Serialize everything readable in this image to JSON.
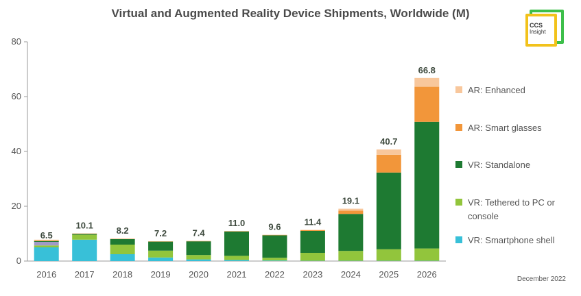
{
  "title": "Virtual and Augmented Reality Device Shipments, Worldwide (M)",
  "footnote": "December 2022",
  "logo": {
    "line1": "CCS",
    "line2": "Insight"
  },
  "chart_data": {
    "type": "bar",
    "stacked": true,
    "title": "Virtual and Augmented Reality Device Shipments, Worldwide (M)",
    "xlabel": "",
    "ylabel": "",
    "ylim": [
      0,
      80
    ],
    "yticks": [
      "0",
      "20",
      "40",
      "60",
      "80"
    ],
    "grid": false,
    "legend_position": "right",
    "categories": [
      "2016",
      "2017",
      "2018",
      "2019",
      "2020",
      "2021",
      "2022",
      "2023",
      "2024",
      "2025",
      "2026"
    ],
    "totals": [
      "6.5",
      "10.1",
      "8.2",
      "7.2",
      "7.4",
      "11.0",
      "9.6",
      "11.4",
      "19.1",
      "40.7",
      "66.8"
    ],
    "series": [
      {
        "name": "VR: Smartphone shell",
        "color": "#38c0d8",
        "values": [
          5.0,
          7.8,
          2.5,
          1.3,
          0.6,
          0.4,
          0.2,
          0.1,
          0.1,
          0.1,
          0.1
        ]
      },
      {
        "name": "VR: Tethered to PC or console",
        "color": "#92c53c",
        "values": [
          0.7,
          1.8,
          3.5,
          2.5,
          1.6,
          1.5,
          1.0,
          2.9,
          3.6,
          4.2,
          4.5
        ]
      },
      {
        "name": "VR: Standalone",
        "color": "#1e7a32",
        "values": [
          0.3,
          0.3,
          2.0,
          3.3,
          5.0,
          8.9,
          8.2,
          8.0,
          13.5,
          28.0,
          46.2
        ]
      },
      {
        "name": "AR: Smart glasses",
        "color": "#f2963a",
        "values": [
          0.2,
          0.1,
          0.1,
          0.1,
          0.1,
          0.1,
          0.1,
          0.3,
          1.2,
          6.5,
          12.8
        ]
      },
      {
        "name": "AR: Enhanced",
        "color": "#f8c79c",
        "values": [
          0.3,
          0.1,
          0.1,
          0.0,
          0.1,
          0.1,
          0.1,
          0.1,
          0.7,
          1.9,
          3.2
        ]
      }
    ],
    "extra_segment": {
      "name": "",
      "color": "#a09ac8",
      "values": [
        1.3,
        0,
        0,
        0,
        0,
        0,
        0,
        0,
        0,
        0,
        0
      ]
    }
  }
}
